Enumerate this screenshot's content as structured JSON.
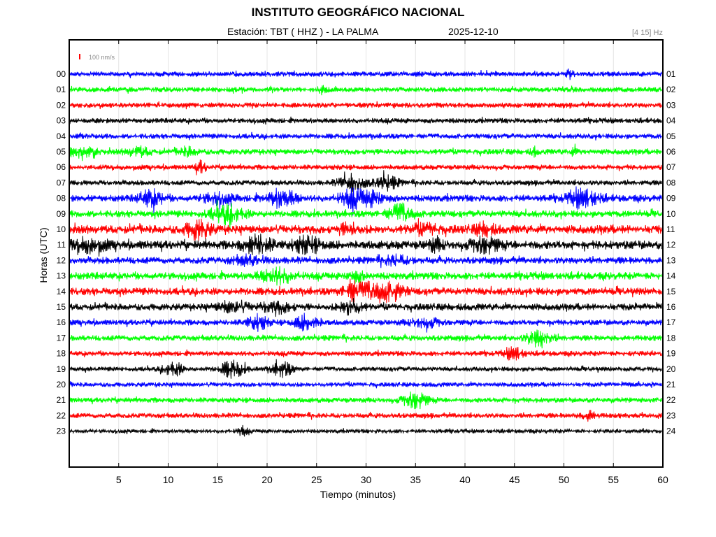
{
  "header": {
    "title": "INSTITUTO GEOGRÁFICO NACIONAL",
    "station": "Estación:  TBT ( HHZ ) - LA PALMA",
    "date": "2025-12-10",
    "band": "[4 15] Hz"
  },
  "chart_data": {
    "type": "line",
    "title": "INSTITUTO GEOGRÁFICO NACIONAL",
    "xlabel": "Tiempo (minutos)",
    "ylabel": "Horas (UTC)",
    "xlim": [
      0,
      60
    ],
    "x_ticks": [
      "5",
      "10",
      "15",
      "20",
      "25",
      "30",
      "35",
      "40",
      "45",
      "50",
      "55",
      "60"
    ],
    "scale_label": "100 nm/s",
    "grid": true,
    "colors_cycle": [
      "#0000ff",
      "#00ff00",
      "#ff0000",
      "#000000"
    ],
    "rows": [
      {
        "left": "00",
        "right": "01",
        "color": "#0000ff",
        "noise": 0.9,
        "events": [
          [
            50.6,
            1.6,
            0.3
          ]
        ]
      },
      {
        "left": "01",
        "right": "02",
        "color": "#00ff00",
        "noise": 0.9,
        "events": [
          [
            25.5,
            1.3,
            0.4
          ]
        ]
      },
      {
        "left": "02",
        "right": "03",
        "color": "#ff0000",
        "noise": 0.9,
        "events": []
      },
      {
        "left": "03",
        "right": "04",
        "color": "#000000",
        "noise": 0.9,
        "events": []
      },
      {
        "left": "04",
        "right": "05",
        "color": "#0000ff",
        "noise": 0.9,
        "events": []
      },
      {
        "left": "05",
        "right": "06",
        "color": "#00ff00",
        "noise": 1.0,
        "events": [
          [
            1.0,
            1.8,
            1.5
          ],
          [
            7.0,
            1.6,
            1.2
          ],
          [
            12.0,
            1.4,
            1.0
          ],
          [
            47.0,
            1.4,
            0.3
          ],
          [
            51.0,
            1.4,
            0.3
          ]
        ]
      },
      {
        "left": "06",
        "right": "07",
        "color": "#ff0000",
        "noise": 0.9,
        "events": [
          [
            13.3,
            2.0,
            0.5
          ]
        ]
      },
      {
        "left": "07",
        "right": "08",
        "color": "#000000",
        "noise": 0.9,
        "events": [
          [
            28.5,
            3.0,
            1.2
          ],
          [
            32.0,
            2.5,
            1.2
          ]
        ]
      },
      {
        "left": "08",
        "right": "09",
        "color": "#0000ff",
        "noise": 1.2,
        "events": [
          [
            8.3,
            2.8,
            1.2
          ],
          [
            15.0,
            1.8,
            1.5
          ],
          [
            21.5,
            3.0,
            1.4
          ],
          [
            28.8,
            3.0,
            1.4
          ],
          [
            31.0,
            2.2,
            1.0
          ],
          [
            52.0,
            3.0,
            1.5
          ]
        ]
      },
      {
        "left": "09",
        "right": "10",
        "color": "#00ff00",
        "noise": 1.2,
        "events": [
          [
            16.0,
            3.0,
            1.6
          ],
          [
            33.5,
            3.0,
            1.2
          ]
        ]
      },
      {
        "left": "10",
        "right": "11",
        "color": "#ff0000",
        "noise": 1.5,
        "events": [
          [
            13.0,
            3.0,
            1.2
          ],
          [
            28.3,
            1.8,
            1.0
          ],
          [
            36.0,
            1.6,
            1.5
          ],
          [
            42.0,
            1.8,
            1.0
          ]
        ]
      },
      {
        "left": "11",
        "right": "12",
        "color": "#000000",
        "noise": 1.5,
        "events": [
          [
            2.0,
            2.0,
            1.8
          ],
          [
            19.0,
            2.8,
            1.4
          ],
          [
            24.0,
            2.4,
            1.4
          ],
          [
            37.0,
            1.8,
            0.8
          ],
          [
            42.0,
            2.6,
            1.4
          ]
        ]
      },
      {
        "left": "12",
        "right": "13",
        "color": "#0000ff",
        "noise": 1.2,
        "events": [
          [
            18.0,
            1.4,
            1.5
          ],
          [
            33.0,
            1.4,
            1.5
          ]
        ]
      },
      {
        "left": "13",
        "right": "14",
        "color": "#00ff00",
        "noise": 1.3,
        "events": [
          [
            21.0,
            2.6,
            1.6
          ],
          [
            29.0,
            1.6,
            1.0
          ]
        ]
      },
      {
        "left": "14",
        "right": "15",
        "color": "#ff0000",
        "noise": 1.3,
        "events": [
          [
            28.5,
            2.8,
            0.8
          ],
          [
            31.0,
            3.0,
            2.0
          ],
          [
            33.0,
            1.6,
            1.0
          ]
        ]
      },
      {
        "left": "15",
        "right": "16",
        "color": "#000000",
        "noise": 1.2,
        "events": [
          [
            16.5,
            1.8,
            1.5
          ],
          [
            21.0,
            1.8,
            1.5
          ],
          [
            28.5,
            3.0,
            1.0
          ]
        ]
      },
      {
        "left": "16",
        "right": "17",
        "color": "#0000ff",
        "noise": 1.0,
        "events": [
          [
            19.0,
            2.6,
            1.0
          ],
          [
            24.0,
            2.6,
            1.2
          ],
          [
            36.0,
            1.6,
            1.5
          ]
        ]
      },
      {
        "left": "17",
        "right": "18",
        "color": "#00ff00",
        "noise": 1.0,
        "events": [
          [
            47.5,
            3.0,
            1.2
          ]
        ]
      },
      {
        "left": "18",
        "right": "19",
        "color": "#ff0000",
        "noise": 0.9,
        "events": [
          [
            45.0,
            2.2,
            0.9
          ]
        ]
      },
      {
        "left": "19",
        "right": "20",
        "color": "#000000",
        "noise": 0.8,
        "events": [
          [
            10.5,
            2.4,
            1.0
          ],
          [
            16.5,
            2.8,
            1.2
          ],
          [
            21.5,
            2.6,
            1.0
          ]
        ]
      },
      {
        "left": "20",
        "right": "21",
        "color": "#0000ff",
        "noise": 0.8,
        "events": []
      },
      {
        "left": "21",
        "right": "22",
        "color": "#00ff00",
        "noise": 0.9,
        "events": [
          [
            35.0,
            3.0,
            1.2
          ]
        ]
      },
      {
        "left": "22",
        "right": "23",
        "color": "#ff0000",
        "noise": 0.9,
        "events": [
          [
            52.5,
            1.8,
            0.6
          ]
        ]
      },
      {
        "left": "23",
        "right": "24",
        "color": "#000000",
        "noise": 0.7,
        "events": [
          [
            17.5,
            1.6,
            0.5
          ]
        ]
      }
    ]
  }
}
